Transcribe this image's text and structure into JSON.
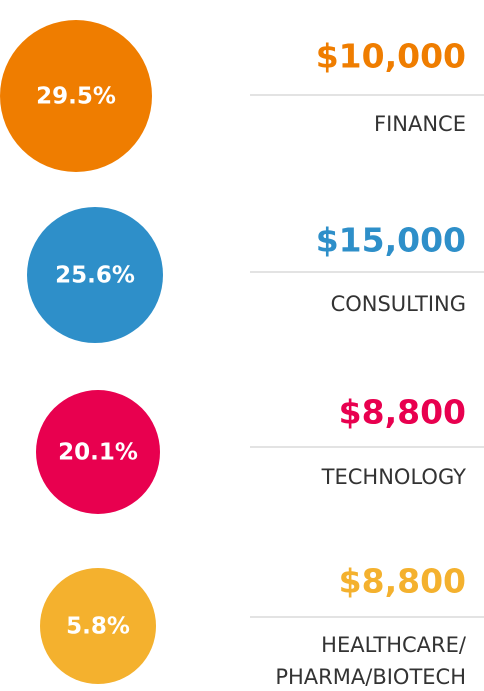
{
  "items": [
    {
      "percent": "29.5%",
      "amount": "$10,000",
      "category": [
        "FINANCE"
      ],
      "color": "#ef7d00"
    },
    {
      "percent": "25.6%",
      "amount": "$15,000",
      "category": [
        "CONSULTING"
      ],
      "color": "#2e8fc9"
    },
    {
      "percent": "20.1%",
      "amount": "$8,800",
      "category": [
        "TECHNOLOGY"
      ],
      "color": "#e8004f"
    },
    {
      "percent": "5.8%",
      "amount": "$8,800",
      "category": [
        "HEALTHCARE/",
        "PHARMA/BIOTECH"
      ],
      "color": "#f4b12e"
    }
  ]
}
